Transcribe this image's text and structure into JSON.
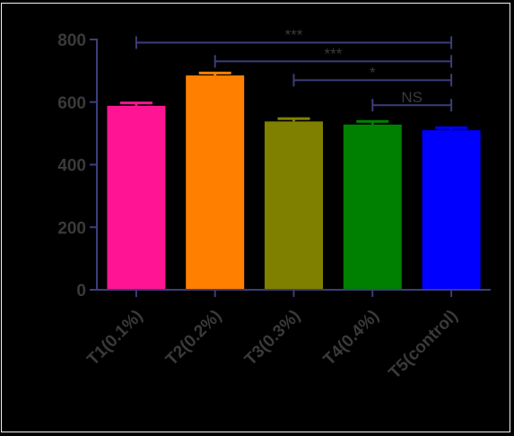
{
  "chart_data": {
    "type": "bar",
    "title": "",
    "xlabel": "",
    "ylabel": "",
    "categories": [
      "T1(0.1%)",
      "T2(0.2%)",
      "T3(0.3%)",
      "T4(0.4%)",
      "T5(control)"
    ],
    "values": [
      588,
      685,
      538,
      528,
      510
    ],
    "error_upper": [
      597,
      693,
      547,
      538,
      518
    ],
    "bar_colors": [
      "#ff1493",
      "#ff8000",
      "#808000",
      "#008000",
      "#0000ff"
    ],
    "ylim": [
      0,
      800
    ],
    "yticks": [
      0,
      200,
      400,
      600,
      800
    ],
    "grid": false,
    "legend": "none",
    "axis_color": "#3d3d7a",
    "text_color": "#3a3a3a",
    "significance": [
      {
        "from": "T1(0.1%)",
        "to": "T5(control)",
        "y": 790,
        "label": "***"
      },
      {
        "from": "T2(0.2%)",
        "to": "T5(control)",
        "y": 730,
        "label": "***"
      },
      {
        "from": "T3(0.3%)",
        "to": "T5(control)",
        "y": 670,
        "label": "*"
      },
      {
        "from": "T4(0.4%)",
        "to": "T5(control)",
        "y": 590,
        "label": "NS"
      }
    ]
  }
}
